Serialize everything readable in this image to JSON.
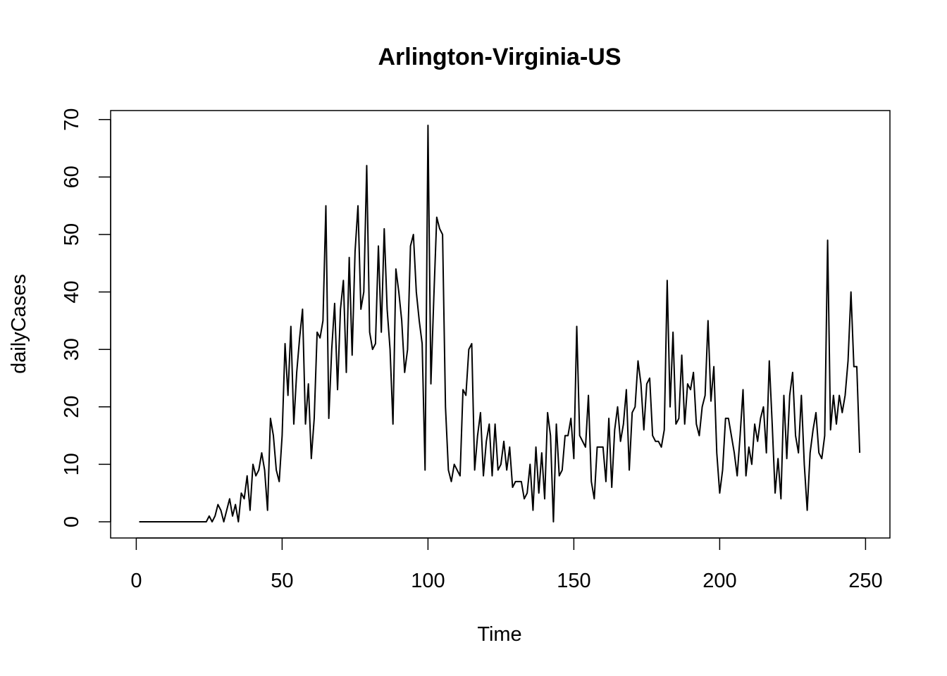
{
  "chart_data": {
    "type": "line",
    "title": "Arlington-Virginia-US",
    "xlabel": "Time",
    "ylabel": "dailyCases",
    "xlim": [
      1,
      248
    ],
    "ylim": [
      0,
      69
    ],
    "xticks": [
      0,
      50,
      100,
      150,
      200,
      250
    ],
    "yticks": [
      0,
      10,
      20,
      30,
      40,
      50,
      60,
      70
    ],
    "grid": false,
    "series": [
      {
        "color": "#000000",
        "values": [
          0,
          0,
          0,
          0,
          0,
          0,
          0,
          0,
          0,
          0,
          0,
          0,
          0,
          0,
          0,
          0,
          0,
          0,
          0,
          0,
          0,
          0,
          0,
          0,
          1,
          0,
          1,
          3,
          2,
          0,
          2,
          4,
          1,
          3,
          0,
          5,
          4,
          8,
          2,
          10,
          8,
          9,
          12,
          9,
          2,
          18,
          15,
          9,
          7,
          15,
          31,
          22,
          34,
          17,
          26,
          32,
          37,
          17,
          24,
          11,
          18,
          33,
          32,
          35,
          55,
          18,
          30,
          38,
          23,
          37,
          42,
          26,
          46,
          29,
          47,
          55,
          37,
          40,
          62,
          33,
          30,
          31,
          48,
          33,
          51,
          37,
          30,
          17,
          44,
          40,
          35,
          26,
          30,
          48,
          50,
          40,
          35,
          31,
          9,
          69,
          24,
          39,
          53,
          51,
          50,
          20,
          9,
          7,
          10,
          9,
          8,
          23,
          22,
          30,
          31,
          9,
          15,
          19,
          8,
          14,
          17,
          8,
          17,
          9,
          10,
          14,
          9,
          13,
          6,
          7,
          7,
          7,
          4,
          5,
          10,
          2,
          13,
          5,
          12,
          4,
          19,
          15,
          0,
          17,
          8,
          9,
          15,
          15,
          18,
          11,
          34,
          15,
          14,
          13,
          22,
          7,
          4,
          13,
          13,
          13,
          7,
          18,
          6,
          16,
          20,
          14,
          17,
          23,
          9,
          19,
          20,
          28,
          24,
          16,
          24,
          25,
          15,
          14,
          14,
          13,
          16,
          42,
          20,
          33,
          17,
          18,
          29,
          17,
          24,
          23,
          26,
          17,
          15,
          20,
          22,
          35,
          21,
          27,
          12,
          5,
          9,
          18,
          18,
          15,
          12,
          8,
          15,
          23,
          8,
          13,
          10,
          17,
          14,
          18,
          20,
          12,
          28,
          17,
          5,
          11,
          4,
          22,
          11,
          22,
          26,
          15,
          12,
          22,
          10,
          2,
          12,
          16,
          19,
          12,
          11,
          15,
          49,
          16,
          22,
          17,
          22,
          19,
          22,
          28,
          40,
          27,
          27,
          12
        ]
      }
    ]
  }
}
